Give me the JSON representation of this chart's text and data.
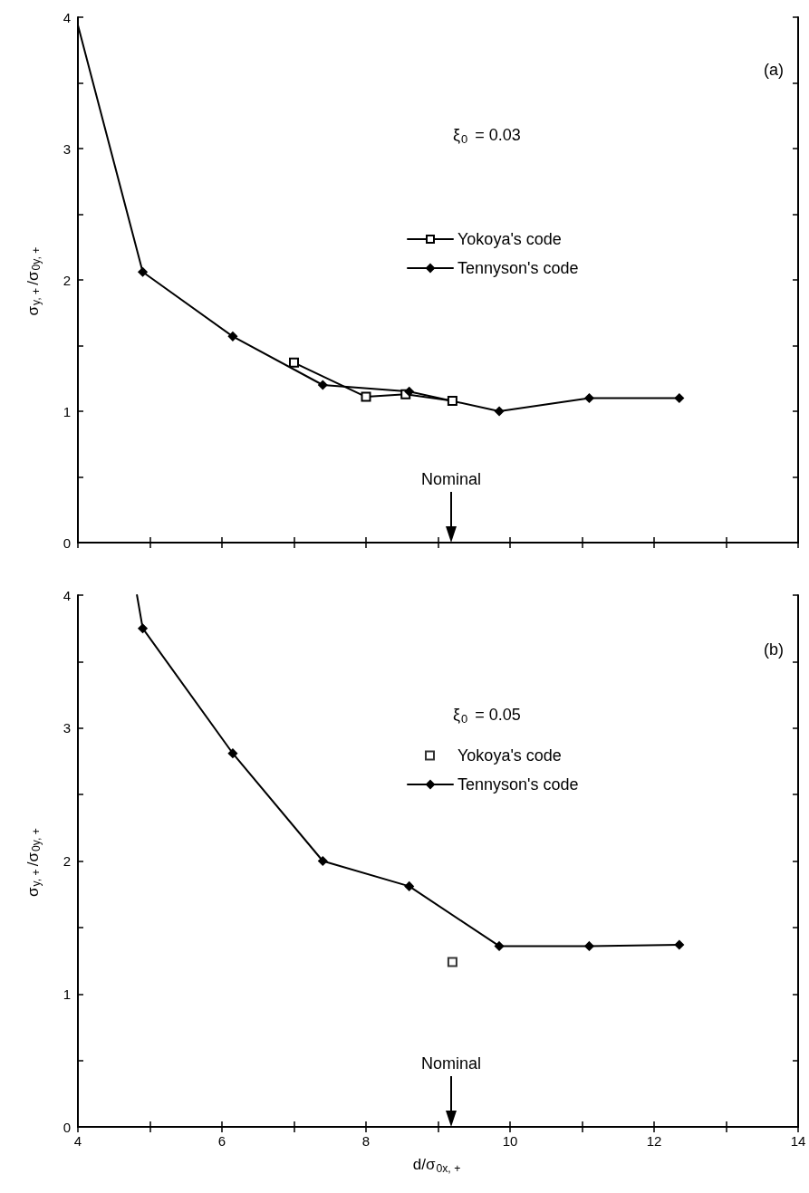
{
  "chart_data": [
    {
      "type": "line",
      "xlim": [
        4,
        14
      ],
      "xticks": [
        4,
        {
          "value": 5,
          "label": null
        },
        6,
        {
          "value": 7,
          "label": null
        },
        8,
        {
          "value": 9,
          "label": null
        },
        10,
        {
          "value": 11,
          "label": null
        },
        12,
        {
          "value": 13,
          "label": null
        },
        14
      ],
      "ylim": [
        0,
        4
      ],
      "yticks": [
        0,
        {
          "value": 0.5,
          "label": null
        },
        1,
        {
          "value": 1.5,
          "label": null
        },
        2,
        {
          "value": 2.5,
          "label": null
        },
        3,
        {
          "value": 3.5,
          "label": null
        },
        4
      ],
      "tick_labels": "y",
      "ylabel": "σ$_{y, +}$/σ$_{0y, +}$",
      "legend": "right",
      "annotations": [
        "(a)",
        "ξ$_{0}$ = 0.03",
        "Nominal"
      ],
      "series": [
        {
          "name": "Yokoya's code",
          "color": "#000000",
          "marker": "square",
          "x": [
            7.0,
            8.0,
            8.55,
            9.2
          ],
          "values": [
            1.37,
            1.11,
            1.13,
            1.08
          ]
        },
        {
          "name": "Tennyson's code",
          "color": "#000000",
          "marker": "diamond",
          "x": [
            4,
            4.9,
            6.15,
            7.4,
            8.6,
            9.85,
            11.1,
            12.35
          ],
          "values": [
            3.94,
            2.06,
            1.57,
            1.2,
            1.15,
            1.0,
            1.1,
            1.1
          ]
        }
      ]
    },
    {
      "type": "line",
      "xlim": [
        4,
        14
      ],
      "xticks": [
        4,
        {
          "value": 5,
          "label": null
        },
        6,
        {
          "value": 7,
          "label": null
        },
        8,
        {
          "value": 9,
          "label": null
        },
        10,
        {
          "value": 11,
          "label": null
        },
        12,
        {
          "value": 13,
          "label": null
        },
        14
      ],
      "ylim": [
        0,
        4
      ],
      "yticks": [
        0,
        {
          "value": 0.5,
          "label": null
        },
        1,
        {
          "value": 1.5,
          "label": null
        },
        2,
        {
          "value": 2.5,
          "label": null
        },
        3,
        {
          "value": 3.5,
          "label": null
        },
        4
      ],
      "xlabel": "d/σ$_{0x, +}$",
      "ylabel": "σ$_{y, +}$/σ$_{0y, +}$",
      "legend": "right",
      "annotations": [
        "(b)",
        "ξ$_{0}$ = 0.05",
        "Nominal"
      ],
      "series": [
        {
          "name": "Yokoya's code",
          "type": "scatter",
          "color": "#000000",
          "marker": "square",
          "x": [
            9.2
          ],
          "values": [
            1.24
          ]
        },
        {
          "name": "Tennyson's code",
          "color": "#000000",
          "marker": "diamond",
          "x": [
            4.82,
            4.9,
            6.15,
            7.4,
            8.6,
            9.85,
            11.1,
            12.35
          ],
          "values": [
            4.0,
            3.75,
            2.81,
            2.0,
            1.81,
            1.36,
            1.36,
            1.37
          ]
        }
      ]
    }
  ]
}
